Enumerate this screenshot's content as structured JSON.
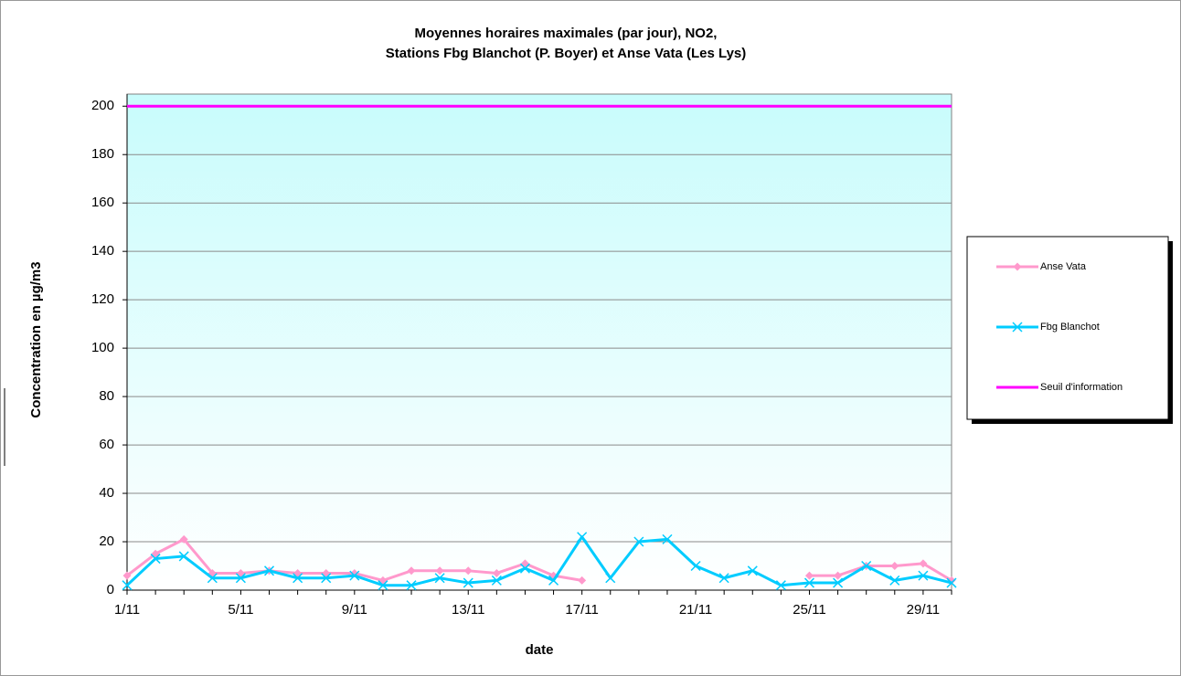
{
  "chart_data": {
    "type": "line",
    "title": [
      "Moyennes horaires maximales (par jour), NO2,",
      "Stations Fbg Blanchot (P. Boyer) et Anse Vata (Les Lys)"
    ],
    "x_label": "date",
    "y_label": "Concentration en µg/m3",
    "categories": [
      "1/11",
      null,
      null,
      null,
      "5/11",
      null,
      null,
      null,
      "9/11",
      null,
      null,
      null,
      "13/11",
      null,
      null,
      null,
      "17/11",
      null,
      null,
      null,
      "21/11",
      null,
      null,
      null,
      "25/11",
      null,
      null,
      null,
      "29/11",
      null
    ],
    "series": [
      {
        "name": "Anse Vata",
        "color": "#ff99cc",
        "marker": "diamond",
        "values": [
          6,
          15,
          21,
          7,
          7,
          8,
          7,
          7,
          7,
          4,
          8,
          8,
          8,
          7,
          11,
          6,
          4,
          null,
          null,
          null,
          null,
          null,
          null,
          null,
          6,
          6,
          10,
          10,
          11,
          4
        ]
      },
      {
        "name": "Fbg Blanchot",
        "color": "#00ccff",
        "marker": "x",
        "values": [
          2,
          13,
          14,
          5,
          5,
          8,
          5,
          5,
          6,
          2,
          2,
          5,
          3,
          4,
          9,
          4,
          22,
          5,
          20,
          21,
          10,
          5,
          8,
          2,
          3,
          3,
          10,
          4,
          6,
          3
        ]
      },
      {
        "name": "Seuil d'information",
        "color": "#ff00ff",
        "marker": "none",
        "values": [
          200,
          200,
          200,
          200,
          200,
          200,
          200,
          200,
          200,
          200,
          200,
          200,
          200,
          200,
          200,
          200,
          200,
          200,
          200,
          200,
          200,
          200,
          200,
          200,
          200,
          200,
          200,
          200,
          200,
          200
        ]
      }
    ],
    "ylim": [
      0,
      205
    ],
    "yticks": [
      0,
      20,
      40,
      60,
      80,
      100,
      120,
      140,
      160,
      180,
      200
    ],
    "grid": true,
    "legend": "right"
  }
}
